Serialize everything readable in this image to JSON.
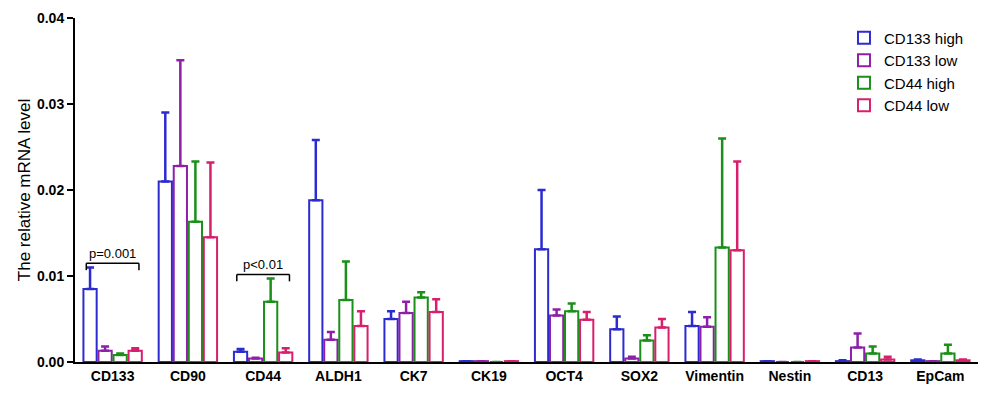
{
  "chart_data": {
    "type": "bar",
    "y_label": "The relative mRNA level",
    "categories": [
      "CD133",
      "CD90",
      "CD44",
      "ALDH1",
      "CK7",
      "CK19",
      "OCT4",
      "SOX2",
      "Vimentin",
      "Nestin",
      "CD13",
      "EpCam"
    ],
    "series": [
      {
        "name": "CD133 high",
        "color": "#2b2bd0",
        "values": [
          0.0085,
          0.021,
          0.0012,
          0.0188,
          0.005,
          0.0001,
          0.0131,
          0.0038,
          0.0042,
          0.0001,
          0.0001,
          0.0002
        ],
        "errors": [
          0.0025,
          0.008,
          0.0003,
          0.007,
          0.0009,
          0,
          0.0069,
          0.0015,
          0.0016,
          0,
          0.0001,
          0.0001
        ]
      },
      {
        "name": "CD133 low",
        "color": "#8e1fa8",
        "values": [
          0.0013,
          0.0228,
          0.0004,
          0.0026,
          0.0057,
          0.0001,
          0.0054,
          0.0004,
          0.0041,
          0,
          0.0017,
          0.0001
        ],
        "errors": [
          0.0005,
          0.0123,
          0.0001,
          0.0009,
          0.0013,
          0,
          0.0007,
          0.0002,
          0.0011,
          0,
          0.0016,
          0
        ]
      },
      {
        "name": "CD44 high",
        "color": "#1a8f1a",
        "values": [
          0.0008,
          0.0163,
          0.007,
          0.0072,
          0.0075,
          0,
          0.0059,
          0.0025,
          0.0133,
          0,
          0.001,
          0.001
        ],
        "errors": [
          0.0002,
          0.007,
          0.0027,
          0.0045,
          0.0006,
          0,
          0.0009,
          0.0006,
          0.0127,
          0,
          0.0008,
          0.001
        ]
      },
      {
        "name": "CD44 low",
        "color": "#d81f6e",
        "values": [
          0.0013,
          0.0145,
          0.0011,
          0.0042,
          0.0058,
          0.0001,
          0.0049,
          0.004,
          0.013,
          0.0001,
          0.0003,
          0.0002
        ],
        "errors": [
          0.0003,
          0.0087,
          0.0005,
          0.0017,
          0.0015,
          0,
          0.0009,
          0.001,
          0.0103,
          0,
          0.0003,
          0.0001
        ]
      }
    ],
    "annotations": [
      {
        "text": "p=0.001",
        "category": "CD133"
      },
      {
        "text": "p<0.01",
        "category": "CD44"
      }
    ],
    "ylim": [
      0,
      0.04
    ],
    "yticks": [
      {
        "value": 0,
        "label": "0.00"
      },
      {
        "value": 0.01,
        "label": "0.01"
      },
      {
        "value": 0.02,
        "label": "0.02"
      },
      {
        "value": 0.03,
        "label": "0.03"
      },
      {
        "value": 0.04,
        "label": "0.04"
      }
    ],
    "grid": false,
    "legend": "top-right"
  }
}
